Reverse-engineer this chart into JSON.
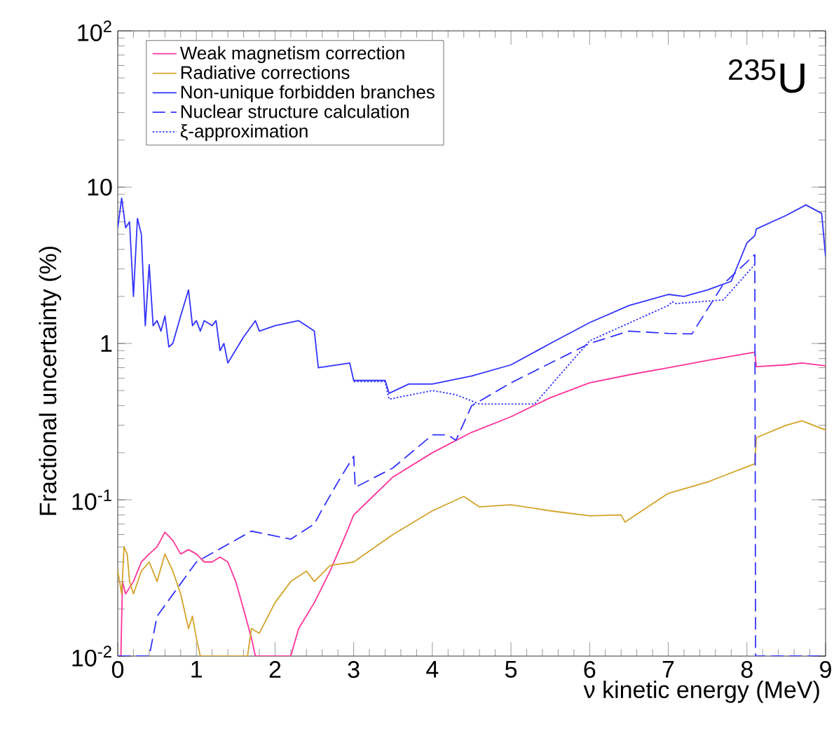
{
  "chart_data": {
    "type": "line",
    "xlabel": "ν kinetic energy (MeV)",
    "ylabel": "Fractional uncertainty (%)",
    "log": "y",
    "xlim": [
      0,
      9
    ],
    "ylim": [
      0.01,
      100
    ],
    "xticks": [
      0,
      1,
      2,
      3,
      4,
      5,
      6,
      7,
      8,
      9
    ],
    "yticks": [
      {
        "value": 0.01,
        "label": "10$^{-2}$"
      },
      {
        "value": 0.1,
        "label": "10$^{-1}$"
      },
      1,
      10,
      {
        "value": 100,
        "label": "10$^{2}$"
      }
    ],
    "legend": "top",
    "grid": false,
    "annotations": [
      "$^{235}$U"
    ],
    "series": [
      {
        "name": "Weak magnetism correction",
        "color": "#ff3399",
        "line_style": "solid",
        "x": [
          0,
          0.04,
          0.06,
          0.1,
          0.2,
          0.3,
          0.4,
          0.5,
          0.6,
          0.7,
          0.8,
          0.9,
          1.0,
          1.1,
          1.2,
          1.3,
          1.4,
          1.5,
          1.6,
          1.7,
          1.75,
          2.2,
          2.3,
          2.5,
          2.7,
          2.9,
          3.0,
          3.2,
          3.5,
          4.0,
          4.5,
          5.0,
          5.5,
          6.0,
          6.5,
          7.0,
          7.5,
          8.1,
          8.12,
          8.5,
          8.7,
          9.0
        ],
        "values": [
          0.01,
          0.01,
          0.03,
          0.025,
          0.03,
          0.04,
          0.045,
          0.05,
          0.062,
          0.055,
          0.045,
          0.048,
          0.045,
          0.04,
          0.04,
          0.043,
          0.04,
          0.03,
          0.02,
          0.013,
          0.01,
          0.01,
          0.015,
          0.022,
          0.035,
          0.06,
          0.08,
          0.1,
          0.14,
          0.2,
          0.27,
          0.34,
          0.45,
          0.56,
          0.63,
          0.7,
          0.78,
          0.88,
          0.71,
          0.73,
          0.75,
          0.72
        ]
      },
      {
        "name": "Radiative corrections",
        "color": "#d4a32a",
        "line_style": "solid",
        "x": [
          0,
          0.05,
          0.08,
          0.12,
          0.15,
          0.2,
          0.3,
          0.4,
          0.5,
          0.6,
          0.7,
          0.8,
          0.9,
          0.95,
          1.0,
          1.05,
          1.65,
          1.7,
          1.8,
          2.0,
          2.2,
          2.4,
          2.5,
          2.7,
          3.0,
          3.5,
          4.0,
          4.4,
          4.6,
          5.0,
          5.5,
          6.0,
          6.4,
          6.45,
          7.0,
          7.5,
          8.1,
          8.12,
          8.5,
          8.7,
          9.0
        ],
        "values": [
          0.035,
          0.025,
          0.05,
          0.045,
          0.03,
          0.025,
          0.035,
          0.04,
          0.03,
          0.045,
          0.035,
          0.025,
          0.015,
          0.018,
          0.013,
          0.01,
          0.01,
          0.015,
          0.014,
          0.022,
          0.03,
          0.035,
          0.03,
          0.038,
          0.04,
          0.06,
          0.085,
          0.105,
          0.09,
          0.093,
          0.085,
          0.079,
          0.08,
          0.072,
          0.11,
          0.13,
          0.17,
          0.25,
          0.3,
          0.32,
          0.28
        ]
      },
      {
        "name": "Non-unique forbidden branches",
        "color": "#3333ff",
        "line_style": "solid",
        "x": [
          0,
          0.05,
          0.1,
          0.15,
          0.2,
          0.25,
          0.3,
          0.35,
          0.4,
          0.45,
          0.5,
          0.55,
          0.6,
          0.65,
          0.7,
          0.8,
          0.9,
          0.95,
          1.0,
          1.05,
          1.1,
          1.2,
          1.25,
          1.3,
          1.35,
          1.4,
          1.6,
          1.75,
          1.8,
          2.0,
          2.3,
          2.5,
          2.55,
          2.95,
          3.0,
          3.4,
          3.45,
          3.7,
          4.0,
          4.5,
          5.0,
          5.5,
          6.0,
          6.5,
          7.0,
          7.2,
          7.5,
          7.8,
          8.0,
          8.1,
          8.12,
          8.5,
          8.75,
          8.95,
          9.0
        ],
        "values": [
          5.5,
          8.5,
          5.5,
          6,
          2,
          6.3,
          5,
          1.3,
          3.2,
          1.3,
          1.4,
          1.2,
          1.5,
          0.95,
          1,
          1.5,
          2.2,
          1.3,
          1.4,
          1.2,
          1.4,
          1.3,
          1.4,
          0.9,
          1,
          0.75,
          1.1,
          1.4,
          1.2,
          1.3,
          1.4,
          1.2,
          0.7,
          0.75,
          0.58,
          0.58,
          0.48,
          0.55,
          0.55,
          0.62,
          0.73,
          1.0,
          1.36,
          1.75,
          2.06,
          2.0,
          2.2,
          2.5,
          4.4,
          4.9,
          5.4,
          6.6,
          7.7,
          6.8,
          3.6
        ]
      },
      {
        "name": "Nuclear structure calculation",
        "color": "#3333ff",
        "line_style": "dashed",
        "x": [
          0,
          0.4,
          0.5,
          1.0,
          1.7,
          2.2,
          2.5,
          2.6,
          2.8,
          3.0,
          3.02,
          3.5,
          4.0,
          4.2,
          4.3,
          4.5,
          5.0,
          6.0,
          6.5,
          7.0,
          7.3,
          7.7,
          8.1,
          8.11,
          9.0
        ],
        "values": [
          0.01,
          0.01,
          0.018,
          0.04,
          0.063,
          0.056,
          0.07,
          0.087,
          0.13,
          0.19,
          0.12,
          0.16,
          0.26,
          0.26,
          0.24,
          0.4,
          0.56,
          1.0,
          1.2,
          1.16,
          1.15,
          2.4,
          3.7,
          0.01,
          0.01
        ]
      },
      {
        "name": "ξ-approximation",
        "color": "#3333ff",
        "line_style": "dotted",
        "x": [
          3.0,
          3.4,
          3.45,
          4.0,
          4.3,
          4.6,
          5.0,
          5.3,
          6.0,
          7.0,
          7.05,
          7.1,
          7.7,
          8.1
        ],
        "values": [
          0.57,
          0.57,
          0.44,
          0.5,
          0.47,
          0.41,
          0.41,
          0.41,
          1.04,
          1.75,
          1.85,
          1.8,
          1.9,
          3.2
        ]
      }
    ]
  }
}
